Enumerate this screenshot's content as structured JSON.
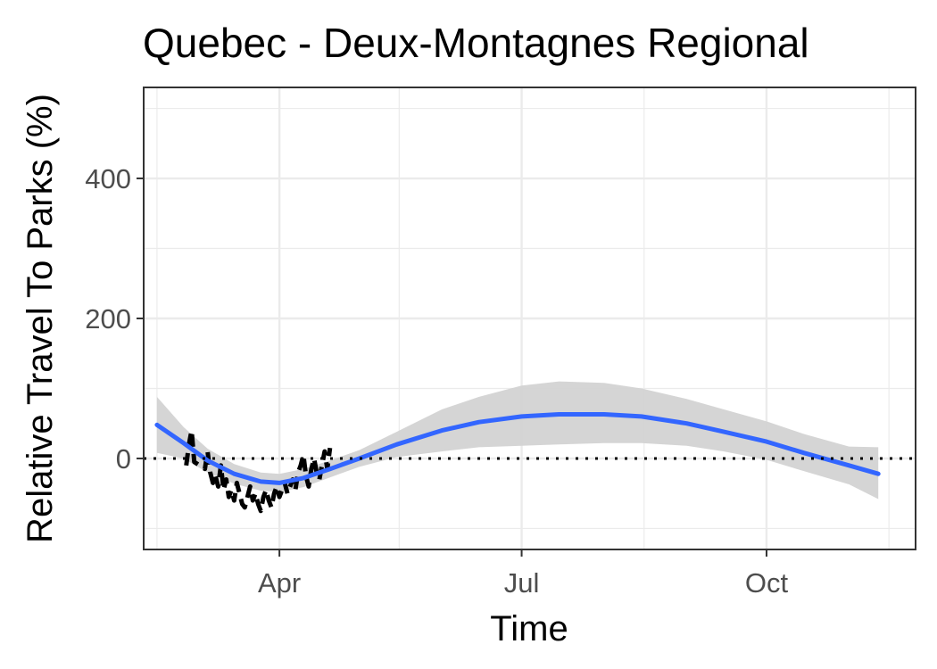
{
  "chart_data": {
    "type": "line",
    "title": "Quebec - Deux-Montagnes Regional",
    "xlabel": "Time",
    "ylabel": "Relative Travel To Parks (%)",
    "x_ticks": [
      "Apr",
      "Jul",
      "Oct"
    ],
    "x_tick_dates": [
      "2020-04-01",
      "2020-07-01",
      "2020-10-01"
    ],
    "x_minor_dates": [
      "2020-02-15",
      "2020-05-16",
      "2020-08-16",
      "2020-11-16"
    ],
    "xlim": [
      "2020-02-10",
      "2020-11-26"
    ],
    "y_ticks": [
      0,
      200,
      400
    ],
    "y_minor": [
      -100,
      100,
      300,
      500
    ],
    "ylim": [
      -130,
      530
    ],
    "grid": true,
    "reference_line": {
      "y": 0,
      "style": "dotted"
    },
    "series": [
      {
        "style": "dashed",
        "color": "#000000",
        "points": [
          [
            "2020-02-26",
            -10
          ],
          [
            "2020-02-27",
            20
          ],
          [
            "2020-02-28",
            40
          ],
          [
            "2020-02-29",
            -5
          ],
          [
            "2020-03-04",
            -15
          ],
          [
            "2020-03-05",
            10
          ],
          [
            "2020-03-06",
            -20
          ],
          [
            "2020-03-07",
            -35
          ],
          [
            "2020-03-08",
            -25
          ],
          [
            "2020-03-09",
            -40
          ],
          [
            "2020-03-10",
            -10
          ],
          [
            "2020-03-11",
            -45
          ],
          [
            "2020-03-12",
            -30
          ],
          [
            "2020-03-13",
            -55
          ],
          [
            "2020-03-14",
            -45
          ],
          [
            "2020-03-15",
            -60
          ],
          [
            "2020-03-16",
            -35
          ],
          [
            "2020-03-17",
            -50
          ],
          [
            "2020-03-18",
            -65
          ],
          [
            "2020-03-19",
            -70
          ],
          [
            "2020-03-20",
            -55
          ],
          [
            "2020-03-21",
            -40
          ],
          [
            "2020-03-22",
            -60
          ],
          [
            "2020-03-23",
            -50
          ],
          [
            "2020-03-24",
            -65
          ],
          [
            "2020-03-25",
            -75
          ],
          [
            "2020-03-26",
            -55
          ],
          [
            "2020-03-27",
            -45
          ],
          [
            "2020-03-28",
            -60
          ],
          [
            "2020-03-29",
            -70
          ],
          [
            "2020-03-30",
            -50
          ],
          [
            "2020-03-31",
            -40
          ],
          [
            "2020-04-01",
            -55
          ],
          [
            "2020-04-02",
            -45
          ],
          [
            "2020-04-03",
            -35
          ],
          [
            "2020-04-04",
            -50
          ],
          [
            "2020-04-05",
            -40
          ],
          [
            "2020-04-06",
            -30
          ],
          [
            "2020-04-07",
            -45
          ],
          [
            "2020-04-08",
            -20
          ],
          [
            "2020-04-09",
            -10
          ],
          [
            "2020-04-10",
            5
          ],
          [
            "2020-04-11",
            -25
          ],
          [
            "2020-04-12",
            -40
          ],
          [
            "2020-04-13",
            -15
          ],
          [
            "2020-04-14",
            0
          ],
          [
            "2020-04-15",
            -20
          ],
          [
            "2020-04-16",
            -30
          ],
          [
            "2020-04-17",
            -10
          ],
          [
            "2020-04-18",
            10
          ],
          [
            "2020-04-19",
            -15
          ],
          [
            "2020-04-20",
            15
          ]
        ]
      },
      {
        "style": "smooth",
        "color": "#3366ff",
        "ribbon_color": "#d3d3d3",
        "points": [
          [
            "2020-02-15",
            48,
            88,
            8
          ],
          [
            "2020-02-25",
            22,
            45,
            0
          ],
          [
            "2020-03-05",
            -3,
            14,
            -20
          ],
          [
            "2020-03-15",
            -22,
            -8,
            -36
          ],
          [
            "2020-03-25",
            -33,
            -20,
            -46
          ],
          [
            "2020-04-01",
            -35,
            -22,
            -48
          ],
          [
            "2020-04-10",
            -28,
            -15,
            -41
          ],
          [
            "2020-04-20",
            -15,
            -3,
            -27
          ],
          [
            "2020-05-01",
            0,
            12,
            -12
          ],
          [
            "2020-05-15",
            20,
            38,
            2
          ],
          [
            "2020-06-01",
            40,
            70,
            10
          ],
          [
            "2020-06-15",
            52,
            88,
            16
          ],
          [
            "2020-07-01",
            60,
            104,
            18
          ],
          [
            "2020-07-15",
            63,
            110,
            20
          ],
          [
            "2020-08-01",
            63,
            108,
            22
          ],
          [
            "2020-08-15",
            60,
            100,
            22
          ],
          [
            "2020-09-01",
            50,
            85,
            18
          ],
          [
            "2020-09-15",
            38,
            70,
            10
          ],
          [
            "2020-10-01",
            24,
            53,
            -2
          ],
          [
            "2020-10-15",
            8,
            35,
            -18
          ],
          [
            "2020-11-01",
            -10,
            17,
            -37
          ],
          [
            "2020-11-12",
            -22,
            16,
            -58
          ]
        ]
      }
    ]
  }
}
